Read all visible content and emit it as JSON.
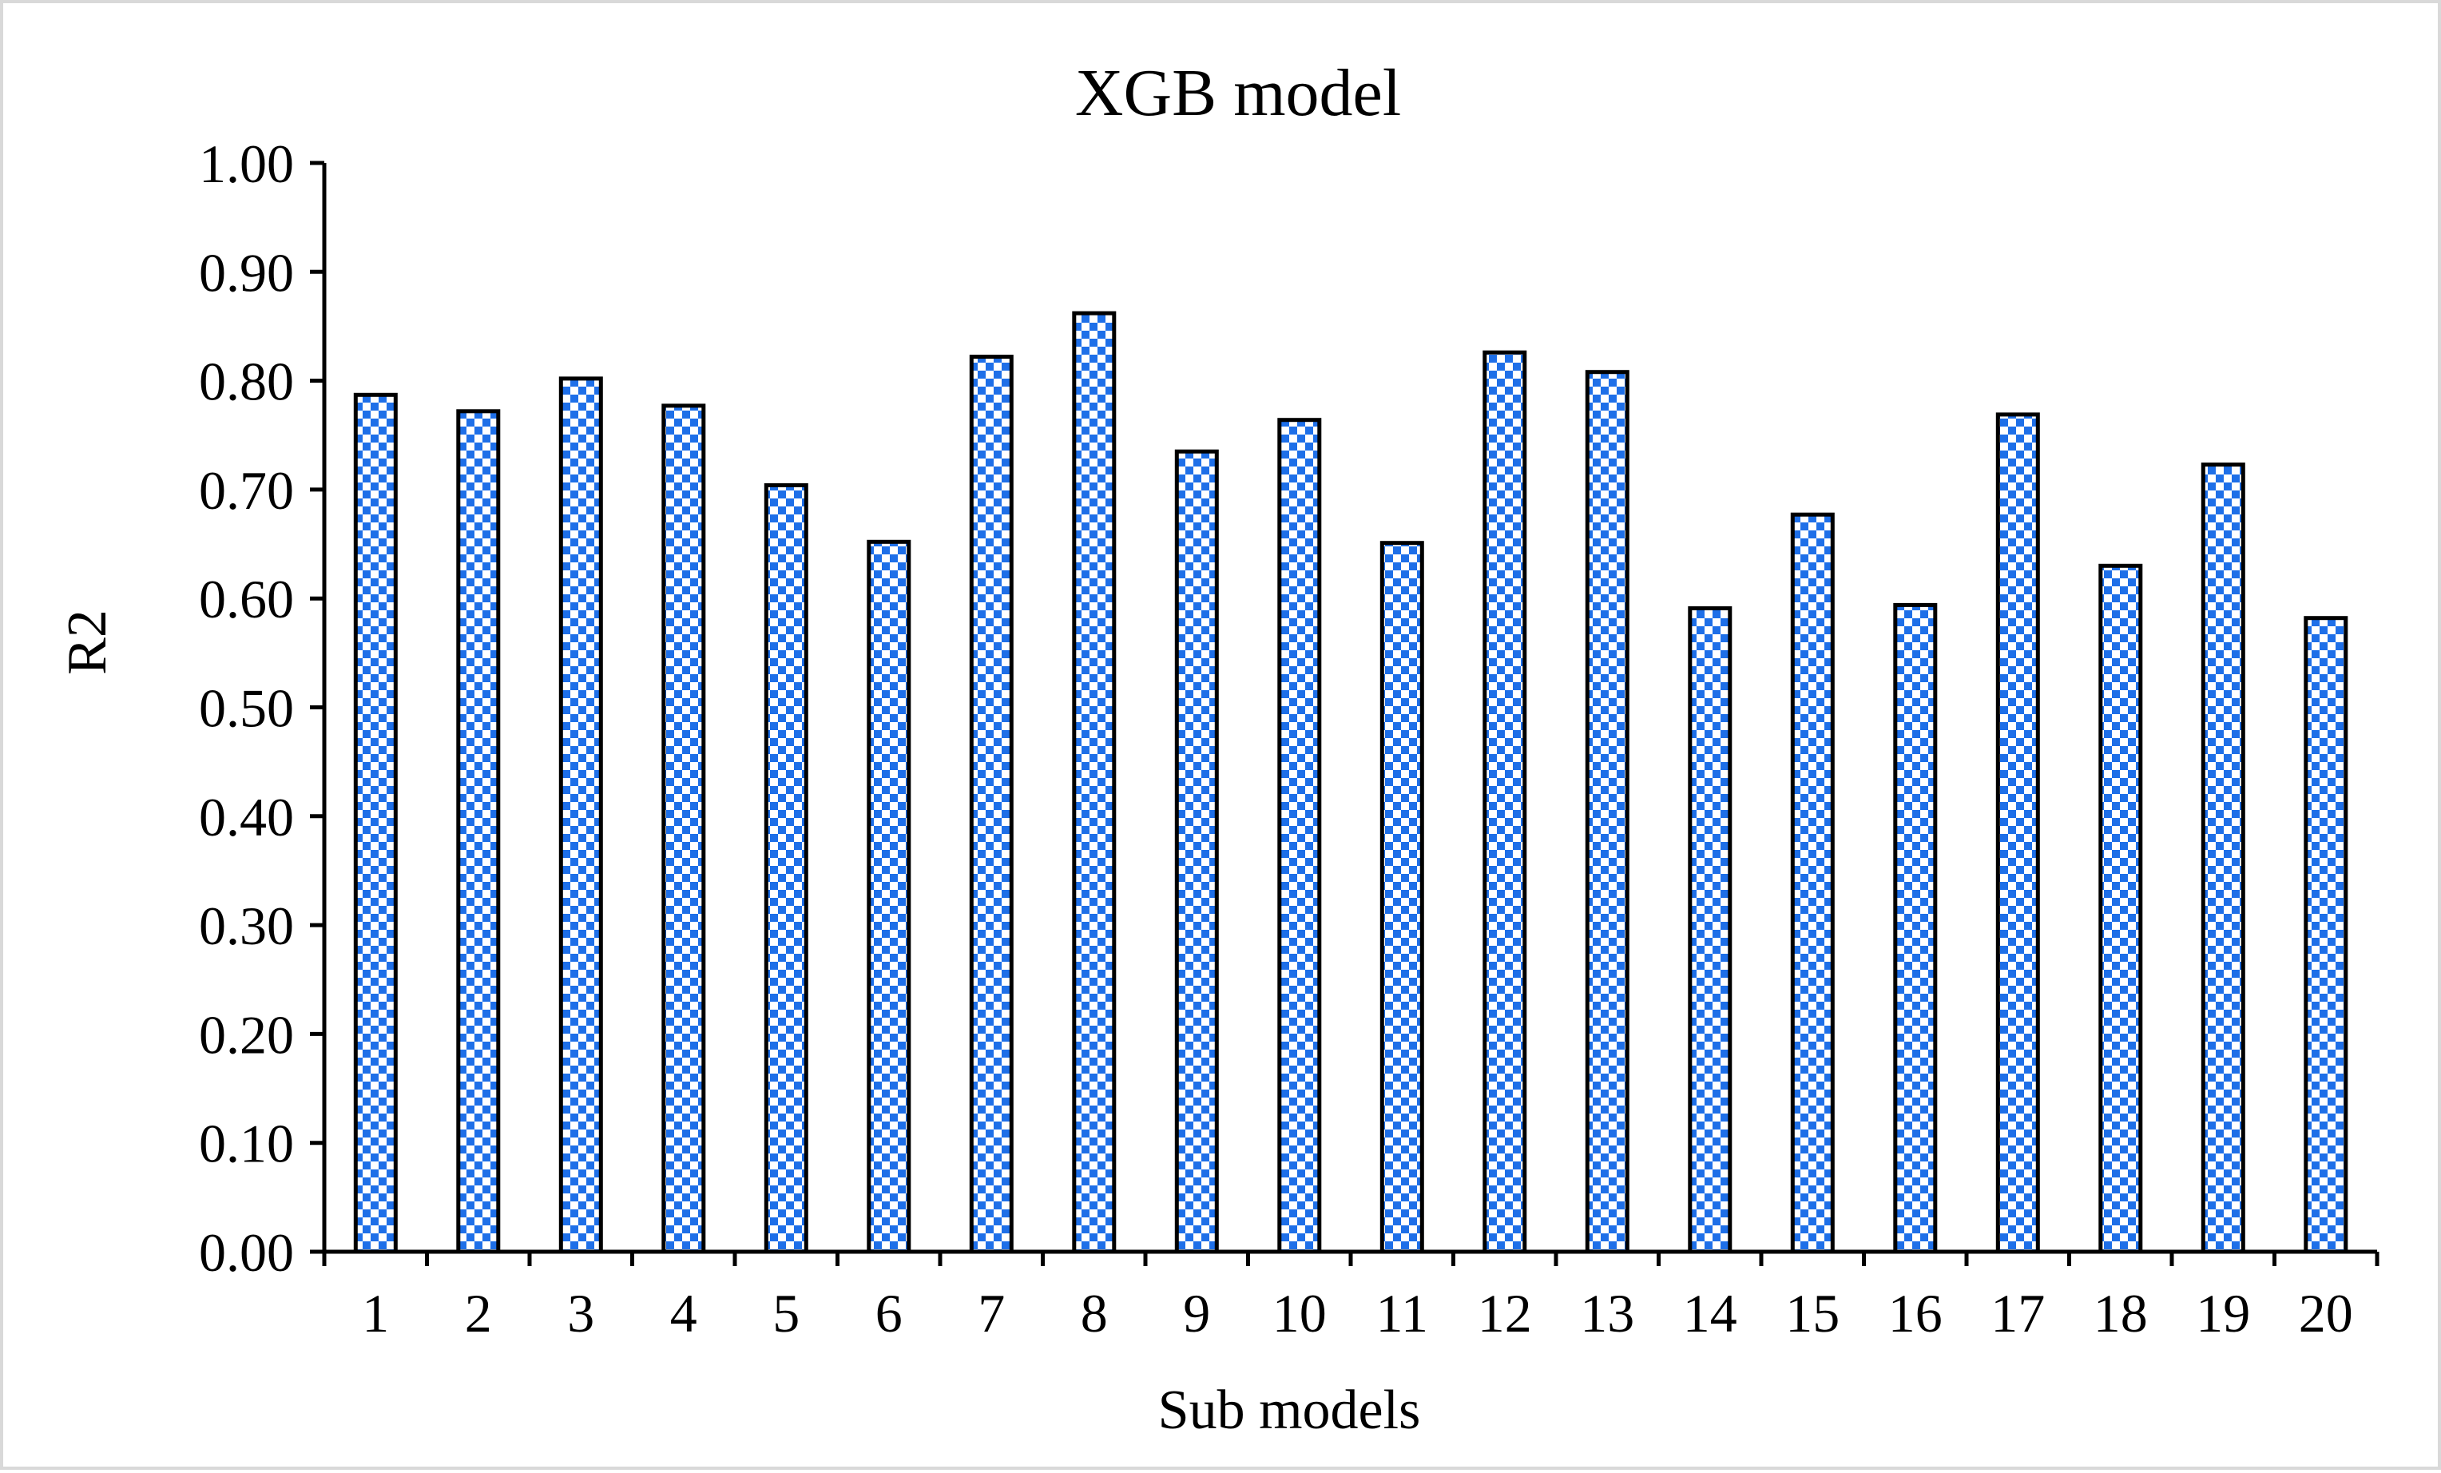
{
  "chart_data": {
    "type": "bar",
    "title": "XGB model",
    "xlabel": "Sub models",
    "ylabel": "R2",
    "categories": [
      "1",
      "2",
      "3",
      "4",
      "5",
      "6",
      "7",
      "8",
      "9",
      "10",
      "11",
      "12",
      "13",
      "14",
      "15",
      "16",
      "17",
      "18",
      "19",
      "20"
    ],
    "values": [
      0.787,
      0.772,
      0.802,
      0.777,
      0.704,
      0.652,
      0.822,
      0.862,
      0.735,
      0.764,
      0.651,
      0.826,
      0.808,
      0.591,
      0.677,
      0.594,
      0.769,
      0.63,
      0.723,
      0.582
    ],
    "ylim": [
      0,
      1.0
    ],
    "yticks": [
      "0.00",
      "0.10",
      "0.20",
      "0.30",
      "0.40",
      "0.50",
      "0.60",
      "0.70",
      "0.80",
      "0.90",
      "1.00"
    ],
    "grid": false,
    "legend": "none",
    "colors": {
      "bar_pattern_primary": "#1e6fe8",
      "bar_pattern_secondary": "#ffffff",
      "bar_outline": "#000000",
      "axis": "#000000",
      "frame_border": "#d9d9d9"
    }
  }
}
